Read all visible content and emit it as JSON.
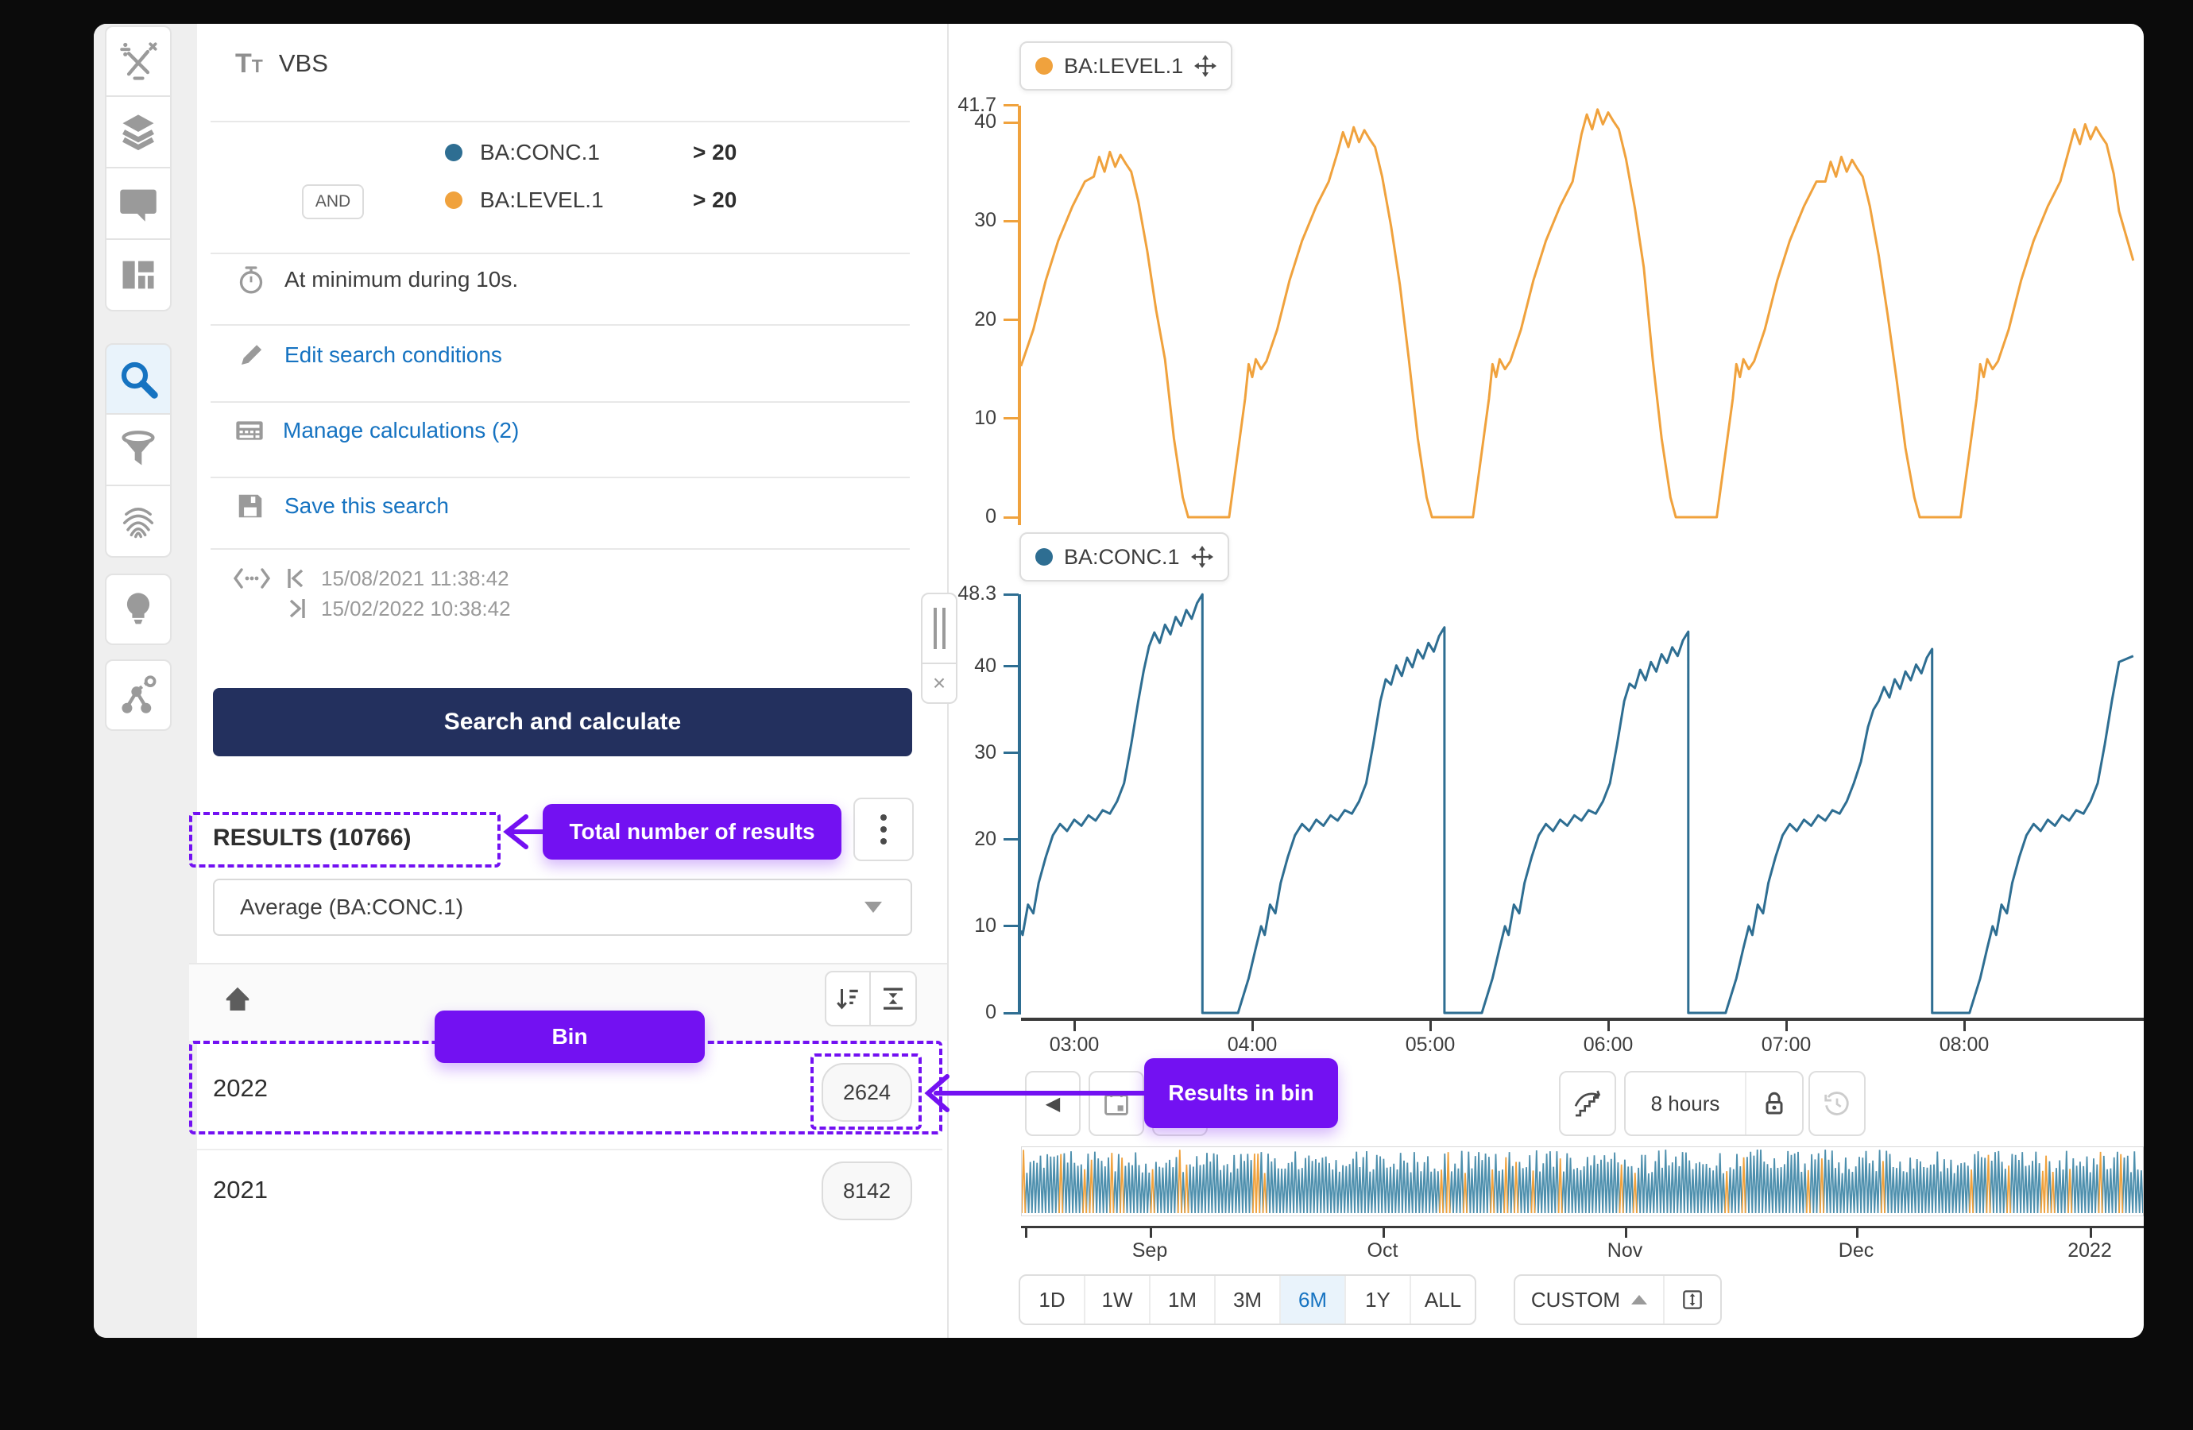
{
  "sidebar": {
    "items": [
      {
        "id": "calculations",
        "icon": "calculator-icon",
        "active": false
      },
      {
        "id": "layers",
        "icon": "layers-icon",
        "active": false
      },
      {
        "id": "comments",
        "icon": "comment-icon",
        "active": false
      },
      {
        "id": "dashboards",
        "icon": "dashboard-icon",
        "active": false
      },
      {
        "id": "search",
        "icon": "search-icon",
        "active": true
      },
      {
        "id": "filter",
        "icon": "filter-icon",
        "active": false
      },
      {
        "id": "fingerprint",
        "icon": "fingerprint-icon",
        "active": false
      },
      {
        "id": "recommendations",
        "icon": "lightbulb-icon",
        "active": false
      },
      {
        "id": "predictions",
        "icon": "nodes-icon",
        "active": false
      }
    ]
  },
  "icons": {
    "title_glyph": "T",
    "title_glyph_small": "T",
    "chevron_left": "◀",
    "close": "×",
    "skip_start": "|‹",
    "skip_end": "›|"
  },
  "search_panel": {
    "title": "VBS",
    "conditions": [
      {
        "logic": "",
        "tag": "BA:CONC.1",
        "color": "#2e6e92",
        "operator": ">",
        "value": "20"
      },
      {
        "logic": "AND",
        "tag": "BA:LEVEL.1",
        "color": "#f0a23d",
        "operator": ">",
        "value": "20"
      }
    ],
    "duration_text": "At minimum during 10s.",
    "edit_link": "Edit search conditions",
    "manage_link": "Manage calculations (2)",
    "save_link": "Save this search",
    "time_start": "15/08/2021 11:38:42",
    "time_end": "15/02/2022 10:38:42",
    "search_button": "Search and calculate",
    "results_title": "RESULTS (10766)",
    "aggregation_value": "Average (BA:CONC.1)",
    "bins": [
      {
        "label": "2022",
        "count": "2624"
      },
      {
        "label": "2021",
        "count": "8142"
      }
    ]
  },
  "annotations": {
    "color": "#7311f2",
    "total_results": "Total number of results",
    "bin": "Bin",
    "results_in_bin": "Results in bin"
  },
  "toolbar": {
    "range_label": "8 hours"
  },
  "range_bar": {
    "buttons": [
      "1D",
      "1W",
      "1M",
      "3M",
      "6M",
      "1Y",
      "ALL"
    ],
    "selected": "6M",
    "custom": "CUSTOM"
  },
  "chart_data": [
    {
      "type": "line",
      "name": "BA:LEVEL.1",
      "color": "#f0a23d",
      "ylim": [
        0,
        41.7
      ],
      "y_ticks": [
        "41.7",
        "40",
        "30",
        "20",
        "10",
        "0"
      ],
      "y_tick_values": [
        41.7,
        40,
        30,
        20,
        10,
        0
      ],
      "x_ticks": [
        "03:00",
        "04:00",
        "05:00",
        "06:00",
        "07:00",
        "08:00"
      ],
      "x_tick_hours": [
        3,
        4,
        5,
        6,
        7,
        8
      ],
      "grid": false,
      "points": [
        [
          2.7,
          15.3
        ],
        [
          2.71,
          15.8
        ],
        [
          2.77,
          19
        ],
        [
          2.84,
          24
        ],
        [
          2.91,
          28
        ],
        [
          2.99,
          31.5
        ],
        [
          3.06,
          34
        ],
        [
          3.11,
          34.5
        ],
        [
          3.14,
          36.5
        ],
        [
          3.17,
          35
        ],
        [
          3.2,
          37
        ],
        [
          3.23,
          35.5
        ],
        [
          3.26,
          36.7
        ],
        [
          3.29,
          35.8
        ],
        [
          3.32,
          35
        ],
        [
          3.36,
          32
        ],
        [
          3.41,
          27
        ],
        [
          3.46,
          21
        ],
        [
          3.51,
          16
        ],
        [
          3.56,
          8
        ],
        [
          3.61,
          2
        ],
        [
          3.64,
          0
        ],
        [
          3.87,
          0
        ],
        [
          3.96,
          12
        ],
        [
          3.98,
          15.5
        ],
        [
          4.0,
          14.2
        ],
        [
          4.02,
          16
        ],
        [
          4.05,
          15
        ],
        [
          4.08,
          15.8
        ],
        [
          4.14,
          19
        ],
        [
          4.21,
          24
        ],
        [
          4.28,
          28
        ],
        [
          4.36,
          31.5
        ],
        [
          4.43,
          34
        ],
        [
          4.48,
          37
        ],
        [
          4.51,
          39
        ],
        [
          4.54,
          37.5
        ],
        [
          4.57,
          39.5
        ],
        [
          4.6,
          38
        ],
        [
          4.63,
          39.2
        ],
        [
          4.66,
          38.3
        ],
        [
          4.69,
          37.5
        ],
        [
          4.73,
          34.5
        ],
        [
          4.78,
          29.5
        ],
        [
          4.83,
          23.5
        ],
        [
          4.88,
          16
        ],
        [
          4.93,
          8
        ],
        [
          4.98,
          2
        ],
        [
          5.01,
          0
        ],
        [
          5.24,
          0
        ],
        [
          5.33,
          12
        ],
        [
          5.35,
          15.5
        ],
        [
          5.37,
          14.2
        ],
        [
          5.39,
          16
        ],
        [
          5.42,
          15
        ],
        [
          5.45,
          15.8
        ],
        [
          5.51,
          19
        ],
        [
          5.58,
          24
        ],
        [
          5.65,
          28
        ],
        [
          5.73,
          31.5
        ],
        [
          5.8,
          34
        ],
        [
          5.85,
          38.8
        ],
        [
          5.88,
          40.8
        ],
        [
          5.91,
          39.3
        ],
        [
          5.94,
          41.3
        ],
        [
          5.97,
          39.8
        ],
        [
          6.0,
          41.0
        ],
        [
          6.03,
          40.1
        ],
        [
          6.06,
          39.3
        ],
        [
          6.1,
          36.3
        ],
        [
          6.15,
          31.3
        ],
        [
          6.2,
          25.3
        ],
        [
          6.25,
          16
        ],
        [
          6.3,
          8
        ],
        [
          6.35,
          2
        ],
        [
          6.38,
          0
        ],
        [
          6.61,
          0
        ],
        [
          6.7,
          12
        ],
        [
          6.72,
          15.5
        ],
        [
          6.74,
          14.2
        ],
        [
          6.76,
          16
        ],
        [
          6.79,
          15
        ],
        [
          6.82,
          15.8
        ],
        [
          6.88,
          19
        ],
        [
          6.95,
          24
        ],
        [
          7.02,
          28
        ],
        [
          7.1,
          31.5
        ],
        [
          7.17,
          34
        ],
        [
          7.22,
          34
        ],
        [
          7.25,
          36
        ],
        [
          7.28,
          34.5
        ],
        [
          7.31,
          36.5
        ],
        [
          7.34,
          35
        ],
        [
          7.37,
          36.2
        ],
        [
          7.4,
          35.3
        ],
        [
          7.43,
          34.5
        ],
        [
          7.47,
          31.5
        ],
        [
          7.52,
          26.5
        ],
        [
          7.57,
          20.5
        ],
        [
          7.62,
          14
        ],
        [
          7.67,
          7
        ],
        [
          7.72,
          2
        ],
        [
          7.75,
          0
        ],
        [
          7.98,
          0
        ],
        [
          8.07,
          12
        ],
        [
          8.09,
          15.5
        ],
        [
          8.11,
          14.2
        ],
        [
          8.13,
          16
        ],
        [
          8.16,
          15
        ],
        [
          8.19,
          15.8
        ],
        [
          8.25,
          19
        ],
        [
          8.32,
          24
        ],
        [
          8.39,
          28
        ],
        [
          8.47,
          31.5
        ],
        [
          8.54,
          34
        ],
        [
          8.59,
          37.3
        ],
        [
          8.62,
          39.3
        ],
        [
          8.65,
          37.8
        ],
        [
          8.68,
          39.8
        ],
        [
          8.71,
          38.3
        ],
        [
          8.74,
          39.5
        ],
        [
          8.77,
          38.6
        ],
        [
          8.8,
          37.8
        ],
        [
          8.84,
          34.8
        ],
        [
          8.87,
          31
        ],
        [
          8.95,
          26
        ]
      ]
    },
    {
      "type": "line",
      "name": "BA:CONC.1",
      "color": "#2e6e92",
      "ylim": [
        0,
        48.3
      ],
      "y_ticks": [
        "48.3",
        "40",
        "30",
        "20",
        "10",
        "0"
      ],
      "y_tick_values": [
        48.3,
        40,
        30,
        20,
        10,
        0
      ],
      "x_ticks": [
        "03:00",
        "04:00",
        "05:00",
        "06:00",
        "07:00",
        "08:00"
      ],
      "x_tick_hours": [
        3,
        4,
        5,
        6,
        7,
        8
      ],
      "grid": false,
      "points": [
        [
          2.7,
          9.5
        ],
        [
          2.71,
          9
        ],
        [
          2.74,
          12.5
        ],
        [
          2.77,
          11.5
        ],
        [
          2.8,
          15
        ],
        [
          2.84,
          18
        ],
        [
          2.88,
          20.5
        ],
        [
          2.92,
          21.8
        ],
        [
          2.96,
          21
        ],
        [
          3.0,
          22.3
        ],
        [
          3.04,
          21.6
        ],
        [
          3.08,
          22.8
        ],
        [
          3.12,
          22.2
        ],
        [
          3.16,
          23.4
        ],
        [
          3.2,
          23
        ],
        [
          3.24,
          24.4
        ],
        [
          3.28,
          26.5
        ],
        [
          3.32,
          31
        ],
        [
          3.36,
          36
        ],
        [
          3.39,
          39.5
        ],
        [
          3.42,
          42.3
        ],
        [
          3.45,
          43.9
        ],
        [
          3.48,
          42.7
        ],
        [
          3.51,
          44.8
        ],
        [
          3.54,
          43.7
        ],
        [
          3.57,
          45.7
        ],
        [
          3.6,
          44.7
        ],
        [
          3.63,
          46.5
        ],
        [
          3.66,
          45.5
        ],
        [
          3.69,
          47.3
        ],
        [
          3.72,
          48.3
        ],
        [
          3.72,
          0
        ],
        [
          3.92,
          0
        ],
        [
          3.98,
          4
        ],
        [
          4.02,
          7.5
        ],
        [
          4.05,
          10
        ],
        [
          4.07,
          9
        ],
        [
          4.1,
          12.5
        ],
        [
          4.13,
          11.5
        ],
        [
          4.16,
          15
        ],
        [
          4.2,
          18
        ],
        [
          4.24,
          20.5
        ],
        [
          4.28,
          21.8
        ],
        [
          4.32,
          21
        ],
        [
          4.36,
          22.3
        ],
        [
          4.4,
          21.6
        ],
        [
          4.44,
          22.8
        ],
        [
          4.48,
          22.2
        ],
        [
          4.52,
          23.4
        ],
        [
          4.56,
          23
        ],
        [
          4.6,
          24.4
        ],
        [
          4.64,
          26.5
        ],
        [
          4.68,
          31
        ],
        [
          4.72,
          36
        ],
        [
          4.75,
          38.5
        ],
        [
          4.78,
          37.9
        ],
        [
          4.81,
          40.1
        ],
        [
          4.84,
          38.9
        ],
        [
          4.87,
          41
        ],
        [
          4.9,
          39.9
        ],
        [
          4.93,
          41.9
        ],
        [
          4.96,
          40.9
        ],
        [
          4.99,
          42.7
        ],
        [
          5.02,
          41.7
        ],
        [
          5.05,
          43.5
        ],
        [
          5.08,
          44.5
        ],
        [
          5.08,
          0
        ],
        [
          5.29,
          0
        ],
        [
          5.35,
          4
        ],
        [
          5.39,
          7.5
        ],
        [
          5.42,
          10
        ],
        [
          5.44,
          9
        ],
        [
          5.47,
          12.5
        ],
        [
          5.5,
          11.5
        ],
        [
          5.53,
          15
        ],
        [
          5.57,
          18
        ],
        [
          5.61,
          20.5
        ],
        [
          5.65,
          21.8
        ],
        [
          5.69,
          21
        ],
        [
          5.73,
          22.3
        ],
        [
          5.77,
          21.6
        ],
        [
          5.81,
          22.8
        ],
        [
          5.85,
          22.2
        ],
        [
          5.89,
          23.4
        ],
        [
          5.93,
          23
        ],
        [
          5.97,
          24.4
        ],
        [
          6.01,
          26.5
        ],
        [
          6.05,
          31
        ],
        [
          6.09,
          36
        ],
        [
          6.12,
          38
        ],
        [
          6.15,
          37.5
        ],
        [
          6.18,
          39.6
        ],
        [
          6.21,
          38.4
        ],
        [
          6.24,
          40.5
        ],
        [
          6.27,
          39.4
        ],
        [
          6.3,
          41.4
        ],
        [
          6.33,
          40.4
        ],
        [
          6.36,
          42.2
        ],
        [
          6.39,
          41.2
        ],
        [
          6.42,
          43
        ],
        [
          6.45,
          44
        ],
        [
          6.45,
          0
        ],
        [
          6.66,
          0
        ],
        [
          6.72,
          4
        ],
        [
          6.76,
          7.5
        ],
        [
          6.79,
          10
        ],
        [
          6.81,
          9
        ],
        [
          6.84,
          12.5
        ],
        [
          6.87,
          11.5
        ],
        [
          6.9,
          15
        ],
        [
          6.94,
          18
        ],
        [
          6.98,
          20.5
        ],
        [
          7.02,
          21.8
        ],
        [
          7.06,
          21
        ],
        [
          7.1,
          22.3
        ],
        [
          7.14,
          21.6
        ],
        [
          7.18,
          22.8
        ],
        [
          7.22,
          22.2
        ],
        [
          7.26,
          23.4
        ],
        [
          7.3,
          23
        ],
        [
          7.34,
          24.4
        ],
        [
          7.38,
          26.5
        ],
        [
          7.42,
          29
        ],
        [
          7.46,
          33
        ],
        [
          7.49,
          35
        ],
        [
          7.52,
          36
        ],
        [
          7.55,
          37.6
        ],
        [
          7.58,
          36.4
        ],
        [
          7.61,
          38.5
        ],
        [
          7.64,
          37.4
        ],
        [
          7.67,
          39.4
        ],
        [
          7.7,
          38.4
        ],
        [
          7.73,
          40.2
        ],
        [
          7.76,
          39.2
        ],
        [
          7.79,
          41
        ],
        [
          7.82,
          42
        ],
        [
          7.82,
          0
        ],
        [
          8.03,
          0
        ],
        [
          8.09,
          4
        ],
        [
          8.13,
          7.5
        ],
        [
          8.16,
          10
        ],
        [
          8.18,
          9
        ],
        [
          8.21,
          12.5
        ],
        [
          8.24,
          11.5
        ],
        [
          8.27,
          15
        ],
        [
          8.31,
          18
        ],
        [
          8.35,
          20.5
        ],
        [
          8.39,
          21.8
        ],
        [
          8.43,
          21
        ],
        [
          8.47,
          22.3
        ],
        [
          8.51,
          21.6
        ],
        [
          8.55,
          22.8
        ],
        [
          8.59,
          22.2
        ],
        [
          8.63,
          23.4
        ],
        [
          8.67,
          23
        ],
        [
          8.71,
          24.4
        ],
        [
          8.75,
          26.5
        ],
        [
          8.79,
          31
        ],
        [
          8.83,
          36
        ],
        [
          8.87,
          40.5
        ],
        [
          8.95,
          41.2
        ]
      ]
    },
    {
      "type": "line",
      "name": "overview-minimap",
      "x_ticks": [
        "Sep",
        "Oct",
        "Nov",
        "Dec",
        "2022"
      ],
      "series_colors": [
        "#4d8fad",
        "#f0a23d"
      ],
      "spike_count": 330,
      "orange_ratio": 0.15,
      "seed": 7
    }
  ]
}
